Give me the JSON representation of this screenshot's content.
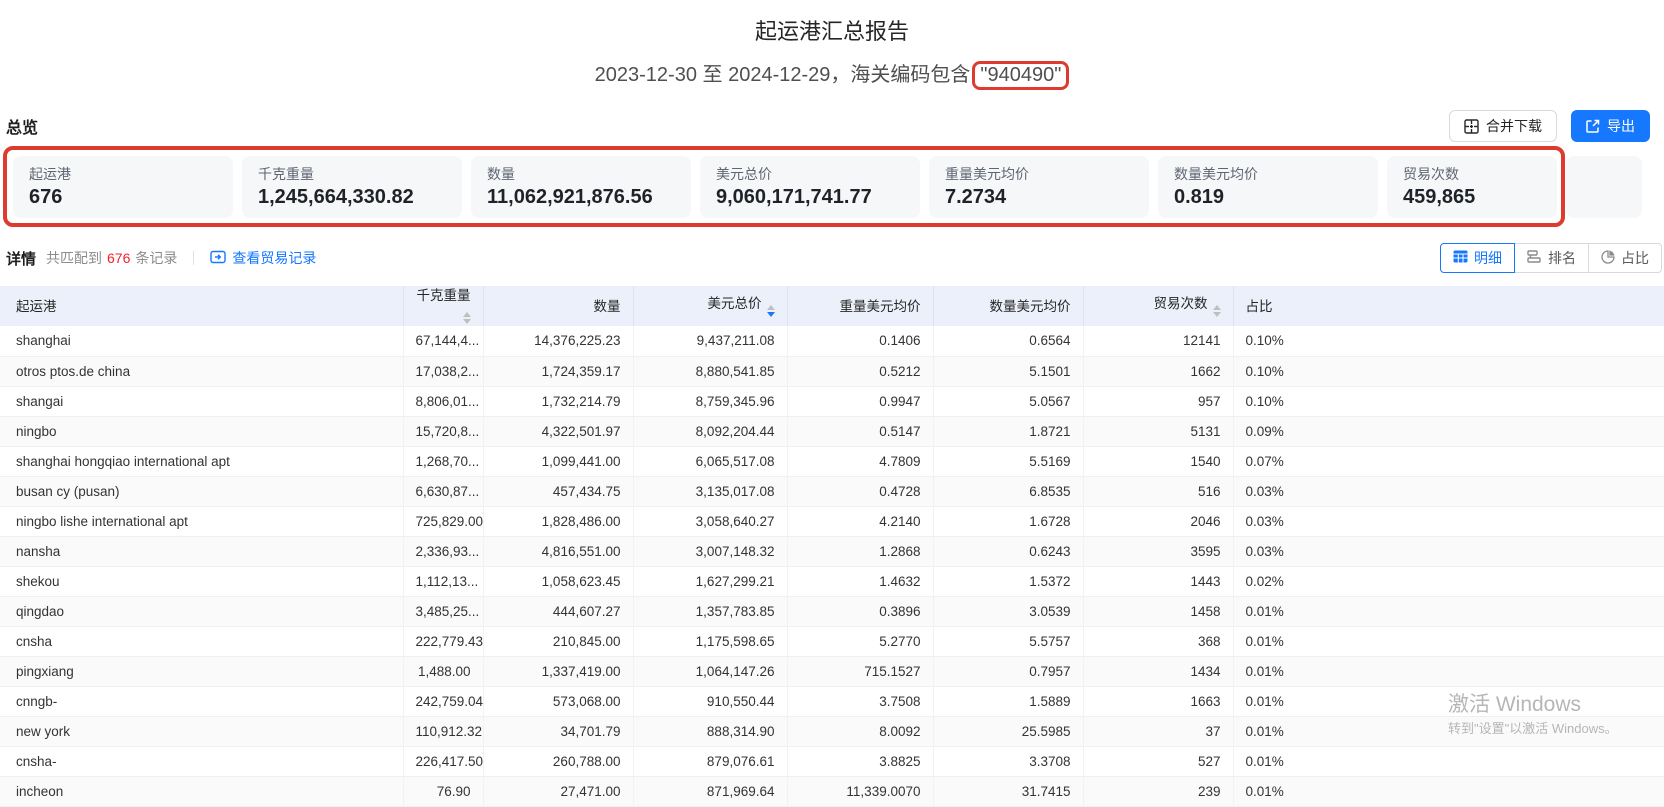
{
  "page": {
    "title": "起运港汇总报告",
    "subtitle_prefix": "2023-12-30 至 2024-12-29，海关编码包含",
    "subtitle_highlight": "\"940490\""
  },
  "overview": {
    "section_label": "总览",
    "merge_download_label": "合并下载",
    "merge_download_icon": "grid-merge-icon",
    "export_label": "导出",
    "export_icon": "external-link-icon",
    "cards": [
      {
        "label": "起运港",
        "value": "676"
      },
      {
        "label": "千克重量",
        "value": "1,245,664,330.82"
      },
      {
        "label": "数量",
        "value": "11,062,921,876.56"
      },
      {
        "label": "美元总价",
        "value": "9,060,171,741.77"
      },
      {
        "label": "重量美元均价",
        "value": "7.2734"
      },
      {
        "label": "数量美元均价",
        "value": "0.819"
      },
      {
        "label": "贸易次数",
        "value": "459,865"
      },
      {
        "label": "",
        "value": ""
      }
    ]
  },
  "detail": {
    "section_label": "详情",
    "matched_prefix": "共匹配到",
    "matched_count": "676",
    "matched_suffix": "条记录",
    "view_trade_records_label": "查看贸易记录",
    "view_trade_records_icon": "trade-records-icon",
    "view_tabs": [
      {
        "label": "明细",
        "icon": "table-icon",
        "active": true
      },
      {
        "label": "排名",
        "icon": "ranking-icon",
        "active": false
      },
      {
        "label": "占比",
        "icon": "pie-icon",
        "active": false
      }
    ]
  },
  "table": {
    "columns": [
      {
        "key": "port",
        "label": "起运港",
        "align": "left",
        "sortable": false,
        "sort": "none"
      },
      {
        "key": "kg_weight",
        "label": "千克重量",
        "align": "right",
        "sortable": true,
        "sort": "none"
      },
      {
        "key": "quantity",
        "label": "数量",
        "align": "right",
        "sortable": false,
        "sort": "none"
      },
      {
        "key": "usd_total",
        "label": "美元总价",
        "align": "right",
        "sortable": true,
        "sort": "desc"
      },
      {
        "key": "usd_per_kg",
        "label": "重量美元均价",
        "align": "right",
        "sortable": false,
        "sort": "none"
      },
      {
        "key": "usd_per_qty",
        "label": "数量美元均价",
        "align": "right",
        "sortable": false,
        "sort": "none"
      },
      {
        "key": "trade_count",
        "label": "贸易次数",
        "align": "right",
        "sortable": true,
        "sort": "none"
      },
      {
        "key": "share",
        "label": "占比",
        "align": "left",
        "sortable": false,
        "sort": "none"
      }
    ],
    "rows": [
      {
        "port": "shanghai",
        "kg_weight": "67,144,4...",
        "quantity": "14,376,225.23",
        "usd_total": "9,437,211.08",
        "usd_per_kg": "0.1406",
        "usd_per_qty": "0.6564",
        "trade_count": "12141",
        "share": "0.10%"
      },
      {
        "port": "otros ptos.de china",
        "kg_weight": "17,038,2...",
        "quantity": "1,724,359.17",
        "usd_total": "8,880,541.85",
        "usd_per_kg": "0.5212",
        "usd_per_qty": "5.1501",
        "trade_count": "1662",
        "share": "0.10%"
      },
      {
        "port": "shangai",
        "kg_weight": "8,806,01...",
        "quantity": "1,732,214.79",
        "usd_total": "8,759,345.96",
        "usd_per_kg": "0.9947",
        "usd_per_qty": "5.0567",
        "trade_count": "957",
        "share": "0.10%"
      },
      {
        "port": "ningbo",
        "kg_weight": "15,720,8...",
        "quantity": "4,322,501.97",
        "usd_total": "8,092,204.44",
        "usd_per_kg": "0.5147",
        "usd_per_qty": "1.8721",
        "trade_count": "5131",
        "share": "0.09%"
      },
      {
        "port": "shanghai hongqiao international apt",
        "kg_weight": "1,268,70...",
        "quantity": "1,099,441.00",
        "usd_total": "6,065,517.08",
        "usd_per_kg": "4.7809",
        "usd_per_qty": "5.5169",
        "trade_count": "1540",
        "share": "0.07%"
      },
      {
        "port": "busan cy (pusan)",
        "kg_weight": "6,630,87...",
        "quantity": "457,434.75",
        "usd_total": "3,135,017.08",
        "usd_per_kg": "0.4728",
        "usd_per_qty": "6.8535",
        "trade_count": "516",
        "share": "0.03%"
      },
      {
        "port": "ningbo lishe international apt",
        "kg_weight": "725,829.00",
        "quantity": "1,828,486.00",
        "usd_total": "3,058,640.27",
        "usd_per_kg": "4.2140",
        "usd_per_qty": "1.6728",
        "trade_count": "2046",
        "share": "0.03%"
      },
      {
        "port": "nansha",
        "kg_weight": "2,336,93...",
        "quantity": "4,816,551.00",
        "usd_total": "3,007,148.32",
        "usd_per_kg": "1.2868",
        "usd_per_qty": "0.6243",
        "trade_count": "3595",
        "share": "0.03%"
      },
      {
        "port": "shekou",
        "kg_weight": "1,112,13...",
        "quantity": "1,058,623.45",
        "usd_total": "1,627,299.21",
        "usd_per_kg": "1.4632",
        "usd_per_qty": "1.5372",
        "trade_count": "1443",
        "share": "0.02%"
      },
      {
        "port": "qingdao",
        "kg_weight": "3,485,25...",
        "quantity": "444,607.27",
        "usd_total": "1,357,783.85",
        "usd_per_kg": "0.3896",
        "usd_per_qty": "3.0539",
        "trade_count": "1458",
        "share": "0.01%"
      },
      {
        "port": "cnsha",
        "kg_weight": "222,779.43",
        "quantity": "210,845.00",
        "usd_total": "1,175,598.65",
        "usd_per_kg": "5.2770",
        "usd_per_qty": "5.5757",
        "trade_count": "368",
        "share": "0.01%"
      },
      {
        "port": "pingxiang",
        "kg_weight": "1,488.00",
        "quantity": "1,337,419.00",
        "usd_total": "1,064,147.26",
        "usd_per_kg": "715.1527",
        "usd_per_qty": "0.7957",
        "trade_count": "1434",
        "share": "0.01%"
      },
      {
        "port": "cnngb-",
        "kg_weight": "242,759.04",
        "quantity": "573,068.00",
        "usd_total": "910,550.44",
        "usd_per_kg": "3.7508",
        "usd_per_qty": "1.5889",
        "trade_count": "1663",
        "share": "0.01%"
      },
      {
        "port": "new york",
        "kg_weight": "110,912.32",
        "quantity": "34,701.79",
        "usd_total": "888,314.90",
        "usd_per_kg": "8.0092",
        "usd_per_qty": "25.5985",
        "trade_count": "37",
        "share": "0.01%"
      },
      {
        "port": "cnsha-",
        "kg_weight": "226,417.50",
        "quantity": "260,788.00",
        "usd_total": "879,076.61",
        "usd_per_kg": "3.8825",
        "usd_per_qty": "3.3708",
        "trade_count": "527",
        "share": "0.01%"
      },
      {
        "port": "incheon",
        "kg_weight": "76.90",
        "quantity": "27,471.00",
        "usd_total": "871,969.64",
        "usd_per_kg": "11,339.0070",
        "usd_per_qty": "31.7415",
        "trade_count": "239",
        "share": "0.01%"
      }
    ]
  },
  "watermark": {
    "line1": "激活 Windows",
    "line2": "转到\"设置\"以激活 Windows。"
  },
  "colors": {
    "primary_blue": "#1677ff",
    "annotation_red": "#dd3b2f",
    "count_red": "#f5222d",
    "table_header_bg": "#ebf0fa",
    "card_bg": "#f6f7f9"
  }
}
